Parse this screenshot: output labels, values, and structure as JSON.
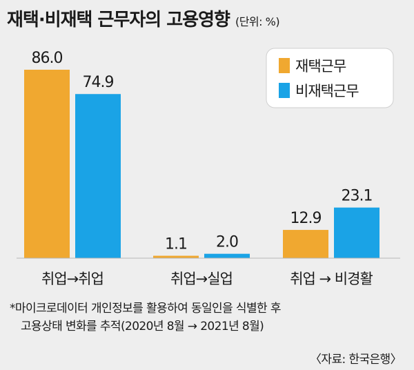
{
  "header": {
    "title": "재택·비재택 근무자의 고용영향",
    "unit": "(단위: %)"
  },
  "colors": {
    "remote": "#f0a830",
    "non_remote": "#1aa3e6",
    "baseline": "#b5b5b5"
  },
  "chart_data": {
    "type": "bar",
    "title": "재택·비재택 근무자의 고용영향",
    "unit": "%",
    "categories": [
      "취업→취업",
      "취업→실업",
      "취업 → 비경활"
    ],
    "series": [
      {
        "name": "재택근무",
        "values": [
          86.0,
          1.1,
          12.9
        ]
      },
      {
        "name": "비재택근무",
        "values": [
          74.9,
          2.0,
          23.1
        ]
      }
    ],
    "value_labels": [
      [
        "86.0",
        "74.9"
      ],
      [
        "1.1",
        "2.0"
      ],
      [
        "12.9",
        "23.1"
      ]
    ],
    "ylim": [
      0,
      86.0
    ],
    "legend_position": "top-right",
    "grid": false
  },
  "footnote": {
    "line1": "*마이크로데이터 개인정보를 활용하여 동일인을 식별한 후",
    "line2": "고용상태 변화를 추적(2020년 8월 → 2021년 8월)"
  },
  "source": "〈자료: 한국은행〉"
}
